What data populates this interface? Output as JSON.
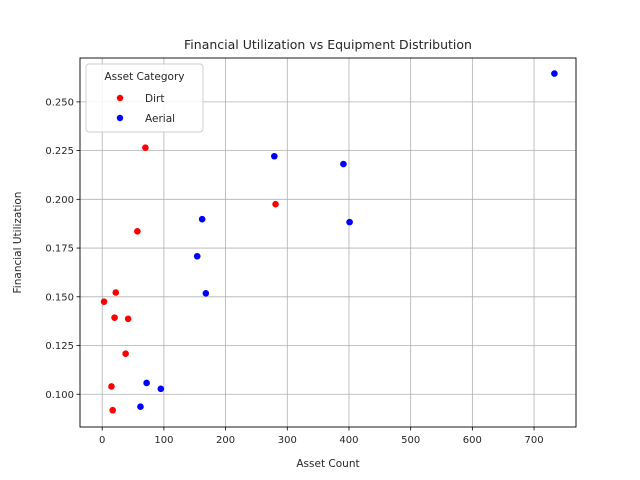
{
  "chart_data": {
    "type": "scatter",
    "title": "Financial Utilization vs Equipment Distribution",
    "xlabel": "Asset Count",
    "ylabel": "Financial Utilization",
    "xlim": [
      -36,
      768
    ],
    "ylim": [
      0.0832,
      0.2725
    ],
    "xticks": [
      0,
      100,
      200,
      300,
      400,
      500,
      600,
      700
    ],
    "xtick_labels": [
      "0",
      "100",
      "200",
      "300",
      "400",
      "500",
      "600",
      "700"
    ],
    "yticks": [
      0.1,
      0.125,
      0.15,
      0.175,
      0.2,
      0.225,
      0.25
    ],
    "ytick_labels": [
      "0.100",
      "0.125",
      "0.150",
      "0.175",
      "0.200",
      "0.225",
      "0.250"
    ],
    "grid": true,
    "legend": {
      "title": "Asset Category",
      "placement": "top-left"
    },
    "series": [
      {
        "name": "Dirt",
        "color": "#ff0000",
        "points": [
          {
            "x": 3,
            "y": 0.1475
          },
          {
            "x": 15,
            "y": 0.104
          },
          {
            "x": 17,
            "y": 0.0918
          },
          {
            "x": 20,
            "y": 0.1393
          },
          {
            "x": 22,
            "y": 0.1522
          },
          {
            "x": 38,
            "y": 0.1208
          },
          {
            "x": 42,
            "y": 0.1387
          },
          {
            "x": 57,
            "y": 0.1836
          },
          {
            "x": 70,
            "y": 0.2265
          },
          {
            "x": 281,
            "y": 0.1975
          }
        ]
      },
      {
        "name": "Aerial",
        "color": "#0000ff",
        "points": [
          {
            "x": 62,
            "y": 0.0936
          },
          {
            "x": 72,
            "y": 0.1058
          },
          {
            "x": 95,
            "y": 0.1028
          },
          {
            "x": 154,
            "y": 0.1708
          },
          {
            "x": 162,
            "y": 0.1898
          },
          {
            "x": 168,
            "y": 0.1518
          },
          {
            "x": 279,
            "y": 0.2221
          },
          {
            "x": 391,
            "y": 0.2181
          },
          {
            "x": 401,
            "y": 0.1883
          },
          {
            "x": 733,
            "y": 0.2645
          }
        ]
      }
    ]
  }
}
